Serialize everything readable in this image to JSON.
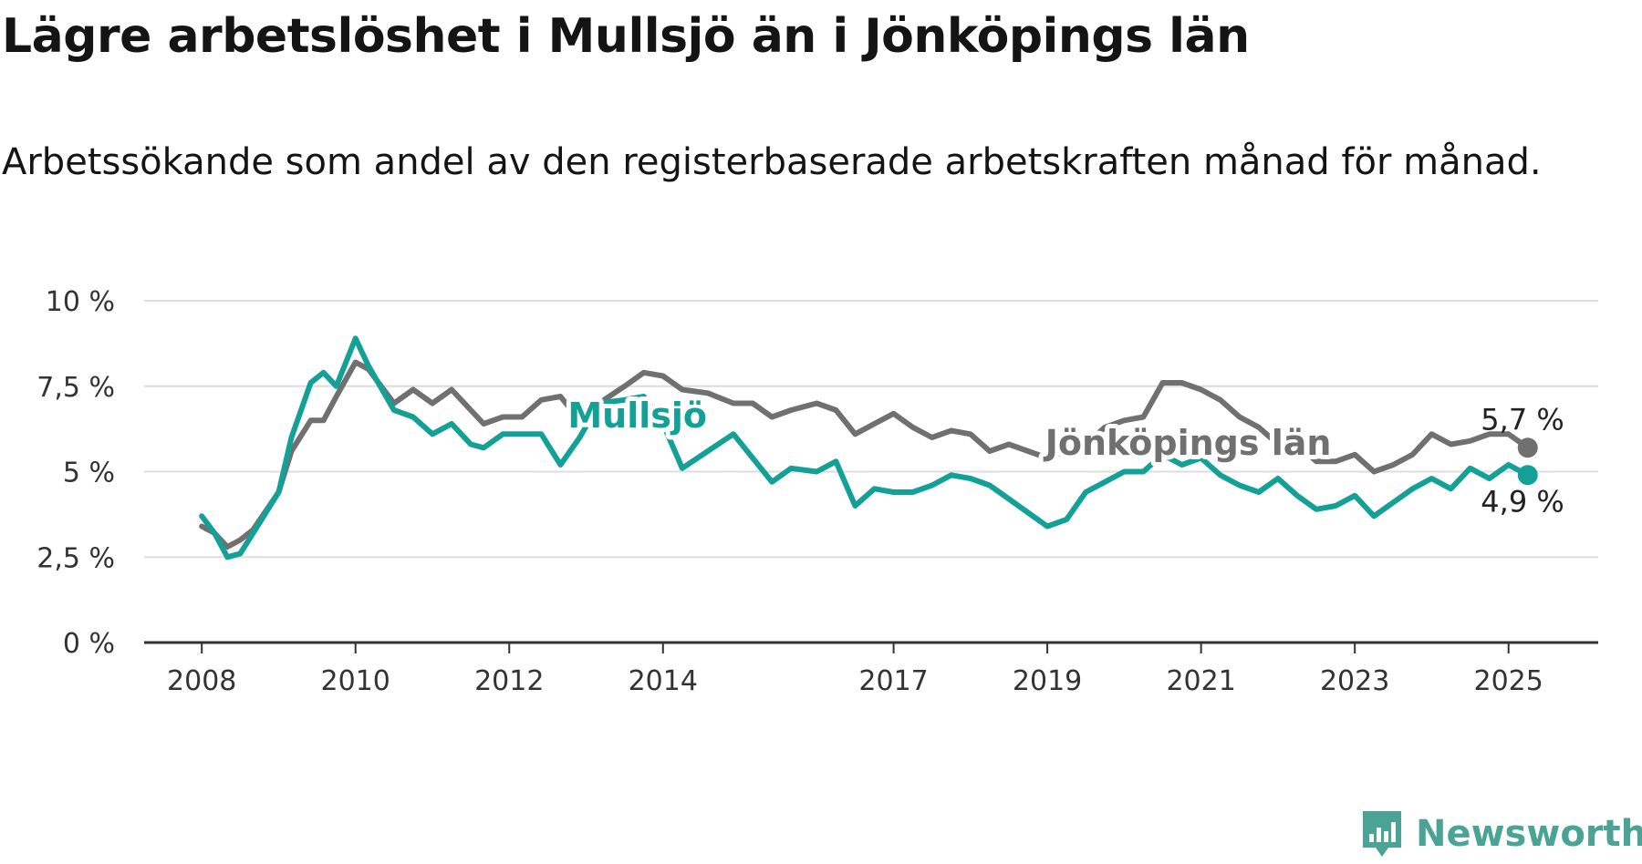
{
  "title": "Lägre arbetslöshet i Mullsjö än i Jönköpings län",
  "subtitle": "Arbetssökande som andel av den registerbaserade arbetskraften månad för månad.",
  "brand": {
    "name": "Newsworthy",
    "icon": "newsworthy-logo-icon",
    "color": "#4aa395"
  },
  "chart_data": {
    "type": "line",
    "title": "Lägre arbetslöshet i Mullsjö än i Jönköpings län",
    "subtitle": "Arbetssökande som andel av den registerbaserade arbetskraften månad för månad.",
    "xlabel": "",
    "ylabel": "",
    "x_type": "date",
    "xlim": [
      "2007-04",
      "2026-03"
    ],
    "ylim": [
      0,
      10
    ],
    "grid": true,
    "legend": "none (direct labels)",
    "y_ticks": [
      {
        "value": 0,
        "label": "0 %"
      },
      {
        "value": 2.5,
        "label": "2,5 %"
      },
      {
        "value": 5,
        "label": "5 %"
      },
      {
        "value": 7.5,
        "label": "7,5 %"
      },
      {
        "value": 10,
        "label": "10 %"
      }
    ],
    "x_ticks": [
      {
        "date": "2008-01",
        "label": "2008"
      },
      {
        "date": "2010-01",
        "label": "2010"
      },
      {
        "date": "2012-01",
        "label": "2012"
      },
      {
        "date": "2014-01",
        "label": "2014"
      },
      {
        "date": "2017-01",
        "label": "2017"
      },
      {
        "date": "2019-01",
        "label": "2019"
      },
      {
        "date": "2021-01",
        "label": "2021"
      },
      {
        "date": "2023-01",
        "label": "2023"
      },
      {
        "date": "2025-01",
        "label": "2025"
      }
    ],
    "series": [
      {
        "name": "Jönköpings län",
        "color": "#707070",
        "end_label": "5,7 %",
        "points": [
          [
            "2008-01",
            3.4
          ],
          [
            "2008-03",
            3.2
          ],
          [
            "2008-05",
            2.8
          ],
          [
            "2008-07",
            3.0
          ],
          [
            "2008-09",
            3.3
          ],
          [
            "2009-01",
            4.4
          ],
          [
            "2009-03",
            5.6
          ],
          [
            "2009-06",
            6.5
          ],
          [
            "2009-08",
            6.5
          ],
          [
            "2009-10",
            7.2
          ],
          [
            "2010-01",
            8.2
          ],
          [
            "2010-03",
            8.0
          ],
          [
            "2010-07",
            7.0
          ],
          [
            "2010-10",
            7.4
          ],
          [
            "2011-01",
            7.0
          ],
          [
            "2011-04",
            7.4
          ],
          [
            "2011-07",
            6.8
          ],
          [
            "2011-09",
            6.4
          ],
          [
            "2011-12",
            6.6
          ],
          [
            "2012-03",
            6.6
          ],
          [
            "2012-06",
            7.1
          ],
          [
            "2012-09",
            7.2
          ],
          [
            "2012-12",
            6.5
          ],
          [
            "2013-03",
            7.0
          ],
          [
            "2013-07",
            7.5
          ],
          [
            "2013-10",
            7.9
          ],
          [
            "2014-01",
            7.8
          ],
          [
            "2014-04",
            7.4
          ],
          [
            "2014-08",
            7.3
          ],
          [
            "2014-12",
            7.0
          ],
          [
            "2015-03",
            7.0
          ],
          [
            "2015-06",
            6.6
          ],
          [
            "2015-09",
            6.8
          ],
          [
            "2016-01",
            7.0
          ],
          [
            "2016-04",
            6.8
          ],
          [
            "2016-07",
            6.1
          ],
          [
            "2016-10",
            6.4
          ],
          [
            "2017-01",
            6.7
          ],
          [
            "2017-04",
            6.3
          ],
          [
            "2017-07",
            6.0
          ],
          [
            "2017-10",
            6.2
          ],
          [
            "2018-01",
            6.1
          ],
          [
            "2018-04",
            5.6
          ],
          [
            "2018-07",
            5.8
          ],
          [
            "2018-10",
            5.6
          ],
          [
            "2019-01",
            5.4
          ],
          [
            "2019-04",
            5.6
          ],
          [
            "2019-07",
            5.8
          ],
          [
            "2019-10",
            6.3
          ],
          [
            "2020-01",
            6.5
          ],
          [
            "2020-04",
            6.6
          ],
          [
            "2020-07",
            7.6
          ],
          [
            "2020-10",
            7.6
          ],
          [
            "2021-01",
            7.4
          ],
          [
            "2021-04",
            7.1
          ],
          [
            "2021-07",
            6.6
          ],
          [
            "2021-10",
            6.3
          ],
          [
            "2022-01",
            5.8
          ],
          [
            "2022-04",
            5.8
          ],
          [
            "2022-07",
            5.3
          ],
          [
            "2022-10",
            5.3
          ],
          [
            "2023-01",
            5.5
          ],
          [
            "2023-04",
            5.0
          ],
          [
            "2023-07",
            5.2
          ],
          [
            "2023-10",
            5.5
          ],
          [
            "2024-01",
            6.1
          ],
          [
            "2024-04",
            5.8
          ],
          [
            "2024-07",
            5.9
          ],
          [
            "2024-10",
            6.1
          ],
          [
            "2025-01",
            6.1
          ],
          [
            "2025-04",
            5.7
          ]
        ]
      },
      {
        "name": "Mullsjö",
        "color": "#13a097",
        "end_label": "4,9 %",
        "points": [
          [
            "2008-01",
            3.7
          ],
          [
            "2008-03",
            3.2
          ],
          [
            "2008-05",
            2.5
          ],
          [
            "2008-07",
            2.6
          ],
          [
            "2008-09",
            3.2
          ],
          [
            "2009-01",
            4.4
          ],
          [
            "2009-03",
            6.0
          ],
          [
            "2009-06",
            7.6
          ],
          [
            "2009-08",
            7.9
          ],
          [
            "2009-10",
            7.5
          ],
          [
            "2010-01",
            8.9
          ],
          [
            "2010-03",
            8.1
          ],
          [
            "2010-07",
            6.8
          ],
          [
            "2010-10",
            6.6
          ],
          [
            "2011-01",
            6.1
          ],
          [
            "2011-04",
            6.4
          ],
          [
            "2011-07",
            5.8
          ],
          [
            "2011-09",
            5.7
          ],
          [
            "2011-12",
            6.1
          ],
          [
            "2012-03",
            6.1
          ],
          [
            "2012-06",
            6.1
          ],
          [
            "2012-09",
            5.2
          ],
          [
            "2012-12",
            6.0
          ],
          [
            "2013-03",
            7.0
          ],
          [
            "2013-07",
            7.1
          ],
          [
            "2013-10",
            7.2
          ],
          [
            "2014-01",
            6.4
          ],
          [
            "2014-04",
            5.1
          ],
          [
            "2014-08",
            5.6
          ],
          [
            "2014-12",
            6.1
          ],
          [
            "2015-03",
            5.4
          ],
          [
            "2015-06",
            4.7
          ],
          [
            "2015-09",
            5.1
          ],
          [
            "2016-01",
            5.0
          ],
          [
            "2016-04",
            5.3
          ],
          [
            "2016-07",
            4.0
          ],
          [
            "2016-10",
            4.5
          ],
          [
            "2017-01",
            4.4
          ],
          [
            "2017-04",
            4.4
          ],
          [
            "2017-07",
            4.6
          ],
          [
            "2017-10",
            4.9
          ],
          [
            "2018-01",
            4.8
          ],
          [
            "2018-04",
            4.6
          ],
          [
            "2018-07",
            4.2
          ],
          [
            "2018-10",
            3.8
          ],
          [
            "2019-01",
            3.4
          ],
          [
            "2019-04",
            3.6
          ],
          [
            "2019-07",
            4.4
          ],
          [
            "2019-10",
            4.7
          ],
          [
            "2020-01",
            5.0
          ],
          [
            "2020-04",
            5.0
          ],
          [
            "2020-07",
            5.5
          ],
          [
            "2020-10",
            5.2
          ],
          [
            "2021-01",
            5.4
          ],
          [
            "2021-04",
            4.9
          ],
          [
            "2021-07",
            4.6
          ],
          [
            "2021-10",
            4.4
          ],
          [
            "2022-01",
            4.8
          ],
          [
            "2022-04",
            4.3
          ],
          [
            "2022-07",
            3.9
          ],
          [
            "2022-10",
            4.0
          ],
          [
            "2023-01",
            4.3
          ],
          [
            "2023-04",
            3.7
          ],
          [
            "2023-07",
            4.1
          ],
          [
            "2023-10",
            4.5
          ],
          [
            "2024-01",
            4.8
          ],
          [
            "2024-04",
            4.5
          ],
          [
            "2024-07",
            5.1
          ],
          [
            "2024-10",
            4.8
          ],
          [
            "2025-01",
            5.2
          ],
          [
            "2025-04",
            4.9
          ]
        ]
      }
    ]
  }
}
